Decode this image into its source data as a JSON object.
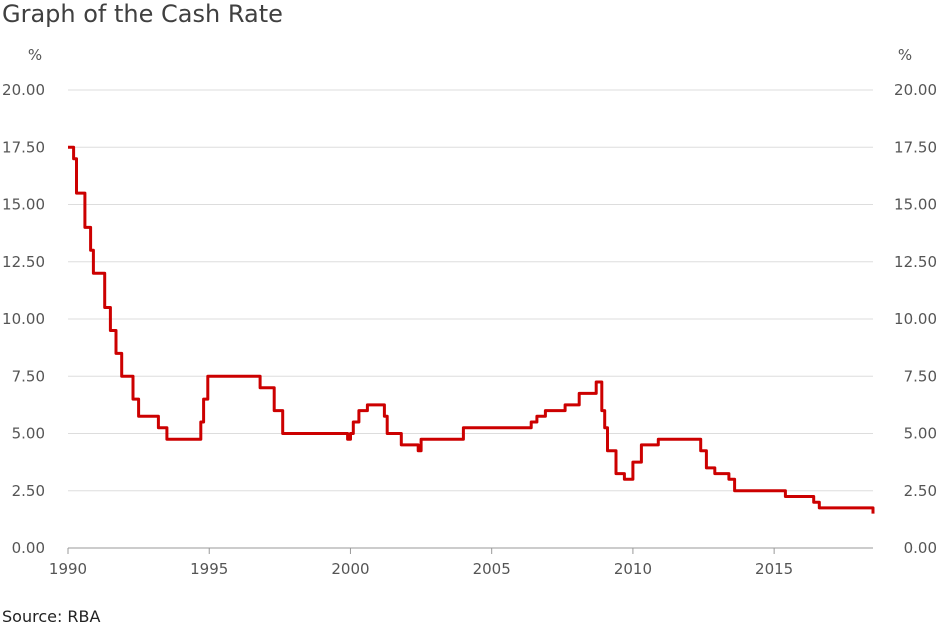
{
  "title": "Graph of the Cash Rate",
  "source": "Source: RBA",
  "colors": {
    "line": "#cc0000",
    "grid": "#dddddd",
    "text": "#555555"
  },
  "chart_data": {
    "type": "line",
    "title": "Graph of the Cash Rate",
    "ylabel_left": "%",
    "ylabel_right": "%",
    "xlim": [
      1990,
      2018.5
    ],
    "ylim": [
      0,
      20
    ],
    "x_ticks": [
      "1990",
      "1995",
      "2000",
      "2005",
      "2010",
      "2015"
    ],
    "y_ticks": [
      "0.00",
      "2.50",
      "5.00",
      "7.50",
      "10.00",
      "12.50",
      "15.00",
      "17.50",
      "20.00"
    ],
    "grid": true,
    "series": [
      {
        "step": true,
        "x": [
          1990.0,
          1990.2,
          1990.3,
          1990.5,
          1990.6,
          1990.8,
          1990.9,
          1991.0,
          1991.3,
          1991.5,
          1991.7,
          1991.9,
          1992.0,
          1992.3,
          1992.5,
          1992.6,
          1993.2,
          1993.5,
          1994.6,
          1994.7,
          1994.8,
          1994.95,
          1996.5,
          1996.8,
          1997.3,
          1997.6,
          1998.9,
          1999.9,
          2000.0,
          2000.1,
          2000.3,
          2000.6,
          2001.1,
          2001.2,
          2001.3,
          2001.6,
          2001.8,
          2002.4,
          2002.5,
          2003.9,
          2004.0,
          2005.2,
          2006.4,
          2006.6,
          2006.9,
          2007.6,
          2007.9,
          2008.1,
          2008.7,
          2008.8,
          2008.9,
          2009.0,
          2009.1,
          2009.4,
          2009.7,
          2009.8,
          2010.0,
          2010.3,
          2010.9,
          2011.9,
          2012.4,
          2012.6,
          2012.9,
          2013.4,
          2013.6,
          2015.1,
          2015.4,
          2016.4,
          2016.6,
          2018.5
        ],
        "values": [
          17.5,
          17.0,
          15.5,
          15.5,
          14.0,
          13.0,
          12.0,
          12.0,
          10.5,
          9.5,
          8.5,
          7.5,
          7.5,
          6.5,
          5.75,
          5.75,
          5.25,
          4.75,
          4.75,
          5.5,
          6.5,
          7.5,
          7.5,
          7.0,
          6.0,
          5.0,
          5.0,
          4.75,
          5.0,
          5.5,
          6.0,
          6.25,
          6.25,
          5.75,
          5.0,
          5.0,
          4.5,
          4.25,
          4.75,
          4.75,
          5.25,
          5.25,
          5.5,
          5.75,
          6.0,
          6.25,
          6.25,
          6.75,
          7.25,
          7.25,
          6.0,
          5.25,
          4.25,
          3.25,
          3.0,
          3.0,
          3.75,
          4.5,
          4.75,
          4.75,
          4.25,
          3.5,
          3.25,
          3.0,
          2.5,
          2.5,
          2.25,
          2.0,
          1.75,
          1.5
        ]
      }
    ]
  }
}
